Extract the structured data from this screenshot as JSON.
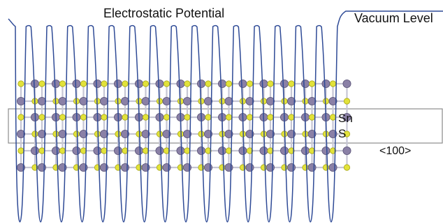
{
  "labels": {
    "potential": "Electrostatic Potential",
    "vacuum_level": "Vacuum Level",
    "tin": "Sn",
    "sulfur": "S",
    "direction": "<100>"
  },
  "colors": {
    "potential_line": "#2e4a96",
    "tin_atom": "#8a80a6",
    "sulfur_atom": "#e2e23a",
    "bond": "#c6c6d4",
    "box": "#8c8c8c"
  },
  "structure": {
    "potential_minima": 16,
    "layers": 8,
    "chains_per_layer": 2,
    "atoms_per_chain": 6
  }
}
